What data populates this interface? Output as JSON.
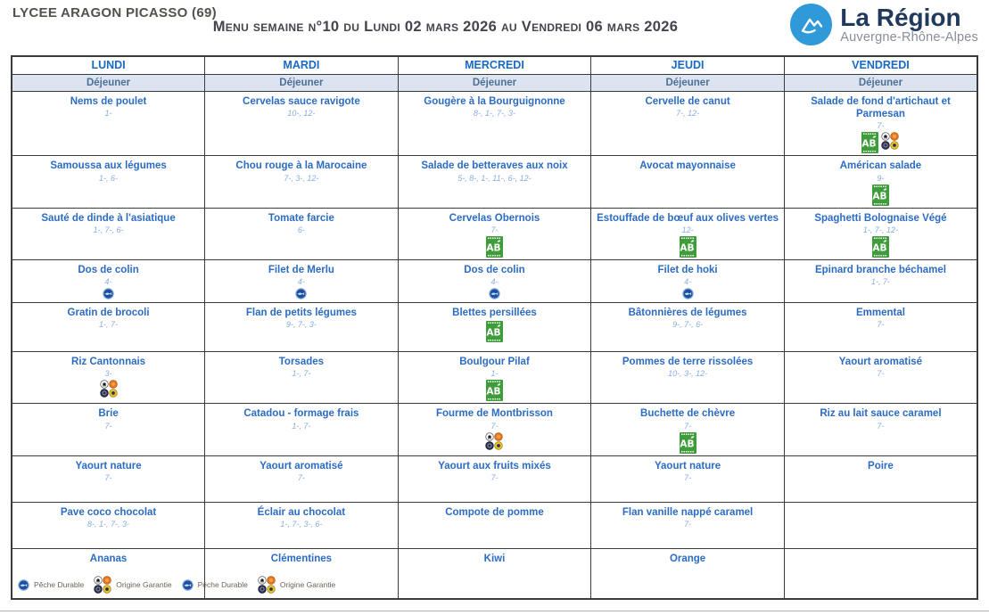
{
  "header": {
    "school": "LYCEE ARAGON PICASSO (69)",
    "menu_title": "Menu semaine n°10 du Lundi 02 mars 2026 au Vendredi 06 mars 2026",
    "logo": {
      "name": "La Région",
      "subname": "Auvergne-Rhône-Alpes",
      "icon": "mountain-icon"
    }
  },
  "table": {
    "days": [
      "LUNDI",
      "MARDI",
      "MERCREDI",
      "JEUDI",
      "VENDREDI"
    ],
    "meal_label": "Déjeuner",
    "rows": [
      [
        {
          "title": "Nems de poulet",
          "allergens": "1-",
          "icons": []
        },
        {
          "title": "Cervelas sauce ravigote",
          "allergens": "10-, 12-",
          "icons": []
        },
        {
          "title": "Gougère à la Bourguignonne",
          "allergens": "8-, 1-, 7-, 3-",
          "icons": []
        },
        {
          "title": "Cervelle de canut",
          "allergens": "7-, 12-",
          "icons": []
        },
        {
          "title": "Salade de fond d'artichaut et Parmesan",
          "allergens": "7-",
          "icons": [
            "ab",
            "origine-garantie"
          ]
        }
      ],
      [
        {
          "title": "Samoussa aux légumes",
          "allergens": "1-, 6-",
          "icons": []
        },
        {
          "title": "Chou rouge à la Marocaine",
          "allergens": "7-, 3-, 12-",
          "icons": []
        },
        {
          "title": "Salade de betteraves aux noix",
          "allergens": "5-, 8-, 1-, 11-, 6-, 12-",
          "icons": []
        },
        {
          "title": "Avocat mayonnaise",
          "allergens": "",
          "icons": []
        },
        {
          "title": "Américan salade",
          "allergens": "9-",
          "icons": [
            "ab"
          ]
        }
      ],
      [
        {
          "title": "Sauté de dinde à l'asiatique",
          "allergens": "1-, 7-, 6-",
          "icons": []
        },
        {
          "title": "Tomate farcie",
          "allergens": "6-",
          "icons": []
        },
        {
          "title": "Cervelas Obernois",
          "allergens": "7-",
          "icons": [
            "ab"
          ]
        },
        {
          "title": "Estouffade de bœuf aux olives vertes",
          "allergens": "12-",
          "icons": [
            "ab"
          ]
        },
        {
          "title": "Spaghetti Bolognaise Végé",
          "allergens": "1-, 7-, 12-",
          "icons": [
            "ab"
          ]
        }
      ],
      [
        {
          "title": "Dos de colin",
          "allergens": "4-",
          "icons": [
            "peche-durable"
          ]
        },
        {
          "title": "Filet de Merlu",
          "allergens": "4-",
          "icons": [
            "peche-durable"
          ]
        },
        {
          "title": "Dos de colin",
          "allergens": "4-",
          "icons": [
            "peche-durable"
          ]
        },
        {
          "title": "Filet de hoki",
          "allergens": "4-",
          "icons": [
            "peche-durable"
          ]
        },
        {
          "title": "Epinard branche béchamel",
          "allergens": "1-, 7-",
          "icons": []
        }
      ],
      [
        {
          "title": "Gratin de brocoli",
          "allergens": "1-, 7-",
          "icons": []
        },
        {
          "title": "Flan de petits légumes",
          "allergens": "9-, 7-, 3-",
          "icons": []
        },
        {
          "title": "Blettes persillées",
          "allergens": "",
          "icons": [
            "ab"
          ]
        },
        {
          "title": "Bâtonnières de légumes",
          "allergens": "9-, 7-, 6-",
          "icons": []
        },
        {
          "title": "Emmental",
          "allergens": "7-",
          "icons": []
        }
      ],
      [
        {
          "title": "Riz Cantonnais",
          "allergens": "3-",
          "icons": [
            "origine-garantie"
          ]
        },
        {
          "title": "Torsades",
          "allergens": "1-, 7-",
          "icons": []
        },
        {
          "title": "Boulgour Pilaf",
          "allergens": "1-",
          "icons": [
            "ab"
          ]
        },
        {
          "title": "Pommes de terre rissolées",
          "allergens": "10-, 3-, 12-",
          "icons": []
        },
        {
          "title": "Yaourt aromatisé",
          "allergens": "7-",
          "icons": []
        }
      ],
      [
        {
          "title": "Brie",
          "allergens": "7-",
          "icons": []
        },
        {
          "title": "Catadou - formage frais",
          "allergens": "1-, 7-",
          "icons": []
        },
        {
          "title": "Fourme de Montbrisson",
          "allergens": "7-",
          "icons": [
            "origine-garantie"
          ]
        },
        {
          "title": "Buchette de chèvre",
          "allergens": "7-",
          "icons": [
            "ab"
          ]
        },
        {
          "title": "Riz au lait sauce caramel",
          "allergens": "7-",
          "icons": []
        }
      ],
      [
        {
          "title": "Yaourt nature",
          "allergens": "7-",
          "icons": []
        },
        {
          "title": "Yaourt aromatisé",
          "allergens": "7-",
          "icons": []
        },
        {
          "title": "Yaourt aux fruits mixés",
          "allergens": "7-",
          "icons": []
        },
        {
          "title": "Yaourt nature",
          "allergens": "7-",
          "icons": []
        },
        {
          "title": "Poire",
          "allergens": "",
          "icons": []
        }
      ],
      [
        {
          "title": "Pave coco chocolat",
          "allergens": "8-, 1-, 7-, 3-",
          "icons": []
        },
        {
          "title": "Éclair au chocolat",
          "allergens": "1-, 7-, 3-, 6-",
          "icons": []
        },
        {
          "title": "Compote de pomme",
          "allergens": "",
          "icons": []
        },
        {
          "title": "Flan vanille nappé caramel",
          "allergens": "7-",
          "icons": []
        },
        {
          "title": "",
          "allergens": "",
          "icons": []
        }
      ],
      [
        {
          "title": "Ananas",
          "allergens": "",
          "icons": []
        },
        {
          "title": "Clémentines",
          "allergens": "",
          "icons": []
        },
        {
          "title": "Kiwi",
          "allergens": "",
          "icons": []
        },
        {
          "title": "Orange",
          "allergens": "",
          "icons": []
        },
        {
          "title": "",
          "allergens": "",
          "icons": []
        }
      ]
    ]
  },
  "legend": {
    "items": [
      {
        "icon": "peche-durable",
        "label": "Pêche Durable"
      },
      {
        "icon": "origine-garantie",
        "label": "Origine Garantie"
      },
      {
        "icon": "peche-durable",
        "label": "Pêche Durable"
      },
      {
        "icon": "origine-garantie",
        "label": "Origine Garantie"
      }
    ]
  },
  "colors": {
    "dish_blue": "#2c6cc4",
    "allergen_blue": "#88acde",
    "day_header_blue": "#1a6ac2",
    "dejeuner_bg": "#dbe4f0",
    "dejeuner_text": "#4f7096",
    "border_dark": "#3b3b3b",
    "school_title_gray": "#54504b",
    "menu_title_gray": "#45444e",
    "logo_navy": "#21395c",
    "logo_blue": "#2f9ad7",
    "ab_green": "#3f9c3a",
    "fish_blue": "#1d4f9f",
    "legend_text": "#6e6257"
  }
}
